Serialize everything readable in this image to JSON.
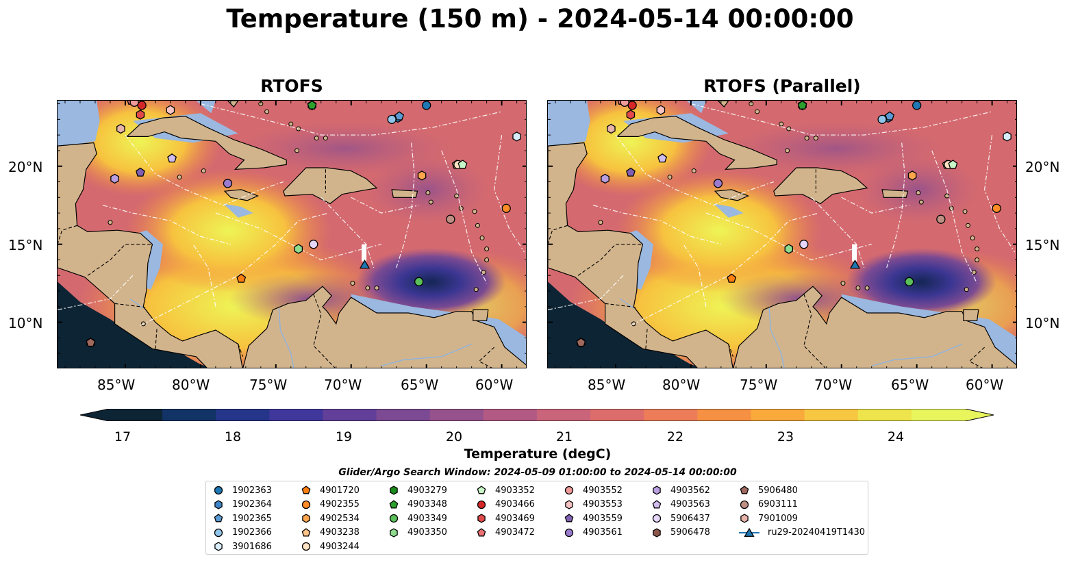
{
  "title": "Temperature (150 m) - 2024-05-14 00:00:00",
  "panels": [
    {
      "title": "RTOFS"
    },
    {
      "title": "RTOFS (Parallel)"
    }
  ],
  "lat_labels": [
    "20°N",
    "15°N",
    "10°N"
  ],
  "lon_labels": [
    "85°W",
    "80°W",
    "75°W",
    "70°W",
    "65°W",
    "60°W"
  ],
  "colorbar": {
    "label": "Temperature (degC)",
    "ticks": [
      "17",
      "18",
      "19",
      "20",
      "21",
      "22",
      "23",
      "24"
    ],
    "min": 16.5,
    "max": 24.5,
    "colors": [
      "#0d2434",
      "#123366",
      "#25368a",
      "#40379c",
      "#623f98",
      "#7b4a93",
      "#96528d",
      "#b25a83",
      "#c9647a",
      "#dd6d6a",
      "#ed7d58",
      "#f69144",
      "#f9aa3b",
      "#f7c741",
      "#eee54c",
      "#e8f55c"
    ]
  },
  "legend": {
    "title": "Glider/Argo Search Window: 2024-05-09 01:00:00 to 2024-05-14 00:00:00",
    "columns": [
      [
        {
          "label": "1902363",
          "shape": "circle",
          "color": "#1f77b4"
        },
        {
          "label": "1902364",
          "shape": "hexagon",
          "color": "#3d85c6"
        },
        {
          "label": "1902365",
          "shape": "pentagon",
          "color": "#5b9bd5"
        },
        {
          "label": "1902366",
          "shape": "circle",
          "color": "#92c5ea"
        },
        {
          "label": "3901686",
          "shape": "hexagon",
          "color": "#d8ecf9"
        }
      ],
      [
        {
          "label": "4901720",
          "shape": "pentagon",
          "color": "#ff7f0e"
        },
        {
          "label": "4902355",
          "shape": "circle",
          "color": "#ff8c26"
        },
        {
          "label": "4902534",
          "shape": "hexagon",
          "color": "#ffa64d"
        },
        {
          "label": "4903238",
          "shape": "pentagon",
          "color": "#ffc48a"
        },
        {
          "label": "4903244",
          "shape": "circle",
          "color": "#ffe2c4"
        }
      ],
      [
        {
          "label": "4903279",
          "shape": "hexagon",
          "color": "#1a8a1a"
        },
        {
          "label": "4903348",
          "shape": "pentagon",
          "color": "#2ca02c"
        },
        {
          "label": "4903349",
          "shape": "circle",
          "color": "#5ac05a"
        },
        {
          "label": "4903350",
          "shape": "hexagon",
          "color": "#8fdc8f"
        }
      ],
      [
        {
          "label": "4903352",
          "shape": "pentagon",
          "color": "#c8f7c8"
        },
        {
          "label": "4903466",
          "shape": "circle",
          "color": "#d62728"
        },
        {
          "label": "4903469",
          "shape": "hexagon",
          "color": "#e04a4a"
        },
        {
          "label": "4903472",
          "shape": "pentagon",
          "color": "#ea7272"
        }
      ],
      [
        {
          "label": "4903552",
          "shape": "circle",
          "color": "#f09a9a"
        },
        {
          "label": "4903553",
          "shape": "hexagon",
          "color": "#f7c4c4"
        },
        {
          "label": "4903559",
          "shape": "pentagon",
          "color": "#8160b2"
        },
        {
          "label": "4903561",
          "shape": "circle",
          "color": "#9a7bcd"
        }
      ],
      [
        {
          "label": "4903562",
          "shape": "hexagon",
          "color": "#b99ee0"
        },
        {
          "label": "4903563",
          "shape": "pentagon",
          "color": "#d2bdef"
        },
        {
          "label": "5906437",
          "shape": "circle",
          "color": "#e6d7fa"
        },
        {
          "label": "5906478",
          "shape": "hexagon",
          "color": "#8c564b"
        }
      ],
      [
        {
          "label": "5906480",
          "shape": "pentagon",
          "color": "#a0695e"
        },
        {
          "label": "6903111",
          "shape": "circle",
          "color": "#c08f84"
        },
        {
          "label": "7901009",
          "shape": "hexagon",
          "color": "#e6b4aa"
        },
        {
          "label": "ru29-20240419T1430",
          "shape": "triangle",
          "color": "#1f77b4"
        }
      ]
    ]
  },
  "map_markers": [
    {
      "id": "1902363",
      "lon": -65.0,
      "lat": 23.9
    },
    {
      "id": "1902364",
      "lon": -66.9,
      "lat": 23.1
    },
    {
      "id": "1902365",
      "lon": -66.8,
      "lat": 23.2
    },
    {
      "id": "1902366",
      "lon": -67.3,
      "lat": 23.0
    },
    {
      "id": "3901686",
      "lon": -59.0,
      "lat": 21.9
    },
    {
      "id": "4901720",
      "lon": -77.3,
      "lat": 12.8
    },
    {
      "id": "4902355",
      "lon": -59.7,
      "lat": 17.3
    },
    {
      "id": "4902534",
      "lon": -65.3,
      "lat": 19.4
    },
    {
      "id": "4903238",
      "lon": -63.0,
      "lat": 20.1
    },
    {
      "id": "4903244",
      "lon": -62.9,
      "lat": 20.1
    },
    {
      "id": "4903279",
      "lon": -72.6,
      "lat": 23.9
    },
    {
      "id": "4903348",
      "lon": -72.6,
      "lat": 23.9
    },
    {
      "id": "4903349",
      "lon": -65.5,
      "lat": 12.6
    },
    {
      "id": "4903350",
      "lon": -73.5,
      "lat": 14.7
    },
    {
      "id": "4903352",
      "lon": -62.6,
      "lat": 20.1
    },
    {
      "id": "4903466",
      "lon": -83.9,
      "lat": 23.9
    },
    {
      "id": "4903469",
      "lon": -84.0,
      "lat": 23.3
    },
    {
      "id": "4903472",
      "lon": -84.6,
      "lat": 24.2
    },
    {
      "id": "4903552",
      "lon": -84.4,
      "lat": 24.1
    },
    {
      "id": "4903553",
      "lon": -82.0,
      "lat": 23.6
    },
    {
      "id": "4903559",
      "lon": -84.0,
      "lat": 19.6
    },
    {
      "id": "4903561",
      "lon": -78.2,
      "lat": 18.9
    },
    {
      "id": "4903562",
      "lon": -85.7,
      "lat": 19.2
    },
    {
      "id": "4903563",
      "lon": -81.9,
      "lat": 20.5
    },
    {
      "id": "5906437",
      "lon": -72.5,
      "lat": 15.0
    },
    {
      "id": "5906478",
      "lon": -87.3,
      "lat": 8.7
    },
    {
      "id": "5906480",
      "lon": -87.3,
      "lat": 8.7
    },
    {
      "id": "6903111",
      "lon": -63.4,
      "lat": 16.6
    },
    {
      "id": "7901009",
      "lon": -85.3,
      "lat": 22.4
    },
    {
      "id": "ru29-20240419T1430",
      "lon": -69.1,
      "lat": 13.7
    }
  ]
}
